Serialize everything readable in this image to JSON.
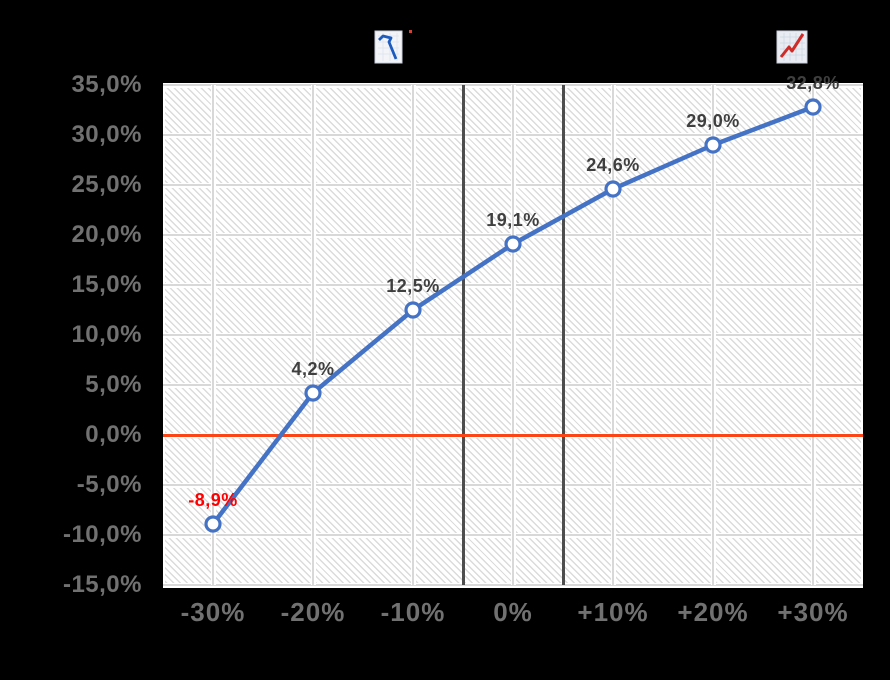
{
  "background_color": "#000000",
  "icons": {
    "downtrend": {
      "name": "downtrend-chart-icon",
      "line_color": "#1D5BBF",
      "bg": "#F2F4F8",
      "dot_color": "#E03C31"
    },
    "uptrend": {
      "name": "uptrend-chart-icon",
      "line_color": "#CF2B28",
      "bg": "#E9EDF3"
    }
  },
  "chart_data": {
    "type": "line",
    "x_tick_labels": [
      "-30%",
      "-20%",
      "-10%",
      "0%",
      "+10%",
      "+20%",
      "+30%"
    ],
    "x_values": [
      -30,
      -20,
      -10,
      0,
      10,
      20,
      30
    ],
    "xlim": [
      -35,
      35
    ],
    "y_tick_labels": [
      "35,0%",
      "30,0%",
      "25,0%",
      "20,0%",
      "15,0%",
      "10,0%",
      "5,0%",
      "0,0%",
      "-5,0%",
      "-10,0%",
      "-15,0%"
    ],
    "y_ticks": [
      35,
      30,
      25,
      20,
      15,
      10,
      5,
      0,
      -5,
      -10,
      -15
    ],
    "ylim": [
      -15,
      35
    ],
    "grid": true,
    "plot_bg_pattern": "diagonal-hatch",
    "series": [
      {
        "name": "scenario-curve",
        "values": [
          -8.9,
          4.2,
          12.5,
          19.1,
          24.6,
          29.0,
          32.8
        ],
        "point_labels": [
          "-8,9%",
          "4,2%",
          "12,5%",
          "19,1%",
          "24,6%",
          "29,0%",
          "32,8%"
        ],
        "color": "#4472C4",
        "marker": "circle-white-fill",
        "label_colors": [
          "#FF0000",
          "#3F3F3F",
          "#3F3F3F",
          "#3F3F3F",
          "#3F3F3F",
          "#3F3F3F",
          "#3F3F3F"
        ]
      }
    ],
    "reference_lines": {
      "horizontal": [
        {
          "y": 0,
          "color": "#FB4516"
        }
      ],
      "vertical": [
        {
          "x": -5,
          "color": "#4D4D4D"
        },
        {
          "x": 5,
          "color": "#4D4D4D"
        }
      ]
    },
    "axis_label_color": "#717171",
    "gridline_color": "#D8D8D8",
    "legend_position": "none"
  }
}
